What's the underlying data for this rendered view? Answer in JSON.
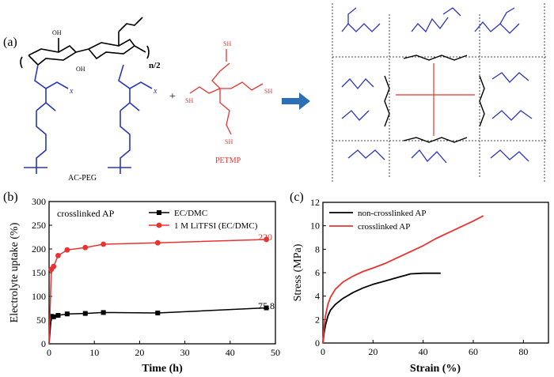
{
  "panel_a": {
    "label": "(a)",
    "polymer_name": "AC-PEG",
    "crosslinker_name": "PETMP",
    "plus_sign": "+",
    "repeat_n2": "n/2",
    "repeat_x": "x",
    "sh_label": "SH",
    "oh_label": "OH",
    "colors": {
      "backbone": "#000000",
      "peg": "#2b35b8",
      "petmp": "#e8332f",
      "arrow": "#2e6fb3"
    }
  },
  "chart_data": [
    {
      "type": "line",
      "panel_label": "(b)",
      "annotation": "crosslinked AP",
      "xlabel": "Time (h)",
      "ylabel": "Electrolyte uptake (%)",
      "xlim": [
        0,
        50
      ],
      "ylim": [
        0,
        300
      ],
      "xticks": [
        0,
        10,
        20,
        30,
        40,
        50
      ],
      "yticks": [
        0,
        50,
        100,
        150,
        200,
        250,
        300
      ],
      "legend_position": "top-right",
      "series": [
        {
          "name": "EC/DMC",
          "color": "#000000",
          "marker": "square",
          "x": [
            0,
            0.5,
            1,
            2,
            4,
            8,
            12,
            24,
            48
          ],
          "y": [
            0,
            58,
            57,
            60,
            63,
            64,
            66,
            65,
            75.8
          ],
          "end_label": "75.8"
        },
        {
          "name": "1 M LiTFSI (EC/DMC)",
          "color": "#e8332f",
          "marker": "circle",
          "x": [
            0,
            0.5,
            1,
            2,
            4,
            8,
            12,
            24,
            48
          ],
          "y": [
            0,
            157,
            163,
            186,
            198,
            203,
            210,
            213,
            220
          ],
          "end_label": "220"
        }
      ]
    },
    {
      "type": "line",
      "panel_label": "(c)",
      "xlabel": "Strain (%)",
      "ylabel": "Stress (MPa)",
      "xlim": [
        0,
        90
      ],
      "ylim": [
        0,
        12
      ],
      "xticks": [
        0,
        20,
        40,
        60,
        80
      ],
      "yticks": [
        0,
        2,
        4,
        6,
        8,
        10,
        12
      ],
      "legend_position": "top-left",
      "series": [
        {
          "name": "non-crosslinked AP",
          "color": "#000000",
          "x": [
            0,
            0.5,
            1,
            2,
            3,
            5,
            8,
            12,
            16,
            20,
            25,
            30,
            35,
            40,
            47
          ],
          "y": [
            0,
            0.9,
            1.5,
            2.3,
            2.8,
            3.3,
            3.8,
            4.3,
            4.7,
            5.0,
            5.3,
            5.6,
            5.9,
            5.95,
            5.95
          ]
        },
        {
          "name": "crosslinked AP",
          "color": "#e8332f",
          "x": [
            0,
            0.5,
            1,
            2,
            3,
            5,
            8,
            12,
            16,
            20,
            25,
            30,
            35,
            40,
            45,
            50,
            55,
            60,
            64
          ],
          "y": [
            0,
            1.4,
            2.3,
            3.3,
            3.9,
            4.6,
            5.2,
            5.7,
            6.1,
            6.4,
            6.8,
            7.3,
            7.8,
            8.3,
            8.9,
            9.4,
            9.9,
            10.4,
            10.85
          ]
        }
      ]
    }
  ]
}
